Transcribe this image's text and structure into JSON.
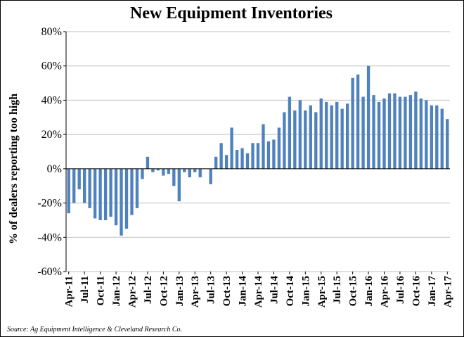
{
  "chart_data": {
    "type": "bar",
    "title": "New Equipment Inventories",
    "ylabel": "% of dealers reporting too high",
    "xlabel": "",
    "source": "Source: Ag Equipment Intelligence & Cleveland Research Co.",
    "ylim": [
      -60,
      80
    ],
    "yticks": [
      -60,
      -40,
      -20,
      0,
      20,
      40,
      60,
      80
    ],
    "ytick_labels": [
      "-60%",
      "-40%",
      "-20%",
      "0%",
      "20%",
      "40%",
      "60%",
      "80%"
    ],
    "grid": true,
    "legend": "none",
    "bar_color": "#4f81bd",
    "xtick_labels": [
      "Apr-11",
      "Jul-11",
      "Oct-11",
      "Jan-12",
      "Apr-12",
      "Jul-12",
      "Oct-12",
      "Jan-13",
      "Apr-13",
      "Jul-13",
      "Oct-13",
      "Jan-14",
      "Apr-14",
      "Jul-14",
      "Oct-14",
      "Jan-15",
      "Apr-15",
      "Jul-15",
      "Oct-15",
      "Jan-16",
      "Apr-16",
      "Jul-16",
      "Oct-16",
      "Jan-17",
      "Apr-17"
    ],
    "categories": [
      "Apr-11",
      "May-11",
      "Jun-11",
      "Jul-11",
      "Aug-11",
      "Sep-11",
      "Oct-11",
      "Nov-11",
      "Dec-11",
      "Jan-12",
      "Feb-12",
      "Mar-12",
      "Apr-12",
      "May-12",
      "Jun-12",
      "Jul-12",
      "Aug-12",
      "Sep-12",
      "Oct-12",
      "Nov-12",
      "Dec-12",
      "Jan-13",
      "Feb-13",
      "Mar-13",
      "Apr-13",
      "May-13",
      "Jun-13",
      "Jul-13",
      "Aug-13",
      "Sep-13",
      "Oct-13",
      "Nov-13",
      "Dec-13",
      "Jan-14",
      "Feb-14",
      "Mar-14",
      "Apr-14",
      "May-14",
      "Jun-14",
      "Jul-14",
      "Aug-14",
      "Sep-14",
      "Oct-14",
      "Nov-14",
      "Dec-14",
      "Jan-15",
      "Feb-15",
      "Mar-15",
      "Apr-15",
      "May-15",
      "Jun-15",
      "Jul-15",
      "Aug-15",
      "Sep-15",
      "Oct-15",
      "Nov-15",
      "Dec-15",
      "Jan-16",
      "Feb-16",
      "Mar-16",
      "Apr-16",
      "May-16",
      "Jun-16",
      "Jul-16",
      "Aug-16",
      "Sep-16",
      "Oct-16",
      "Nov-16",
      "Dec-16",
      "Jan-17",
      "Feb-17",
      "Mar-17",
      "Apr-17"
    ],
    "values": [
      -26,
      -20,
      -12,
      -20,
      -23,
      -29,
      -30,
      -30,
      -28,
      -33,
      -39,
      -35,
      -27,
      -23,
      -6,
      7,
      -2,
      -1,
      -4,
      -3,
      -10,
      -19,
      -2,
      -5,
      -2,
      -5,
      0,
      -9,
      7,
      15,
      8,
      24,
      11,
      12,
      9,
      15,
      15,
      26,
      16,
      17,
      24,
      33,
      42,
      34,
      40,
      34,
      37,
      33,
      41,
      39,
      37,
      39,
      35,
      38,
      53,
      55,
      42,
      60,
      43,
      39,
      41,
      44,
      44,
      42,
      42,
      43,
      45,
      41,
      40,
      37,
      37,
      35,
      29
    ]
  }
}
